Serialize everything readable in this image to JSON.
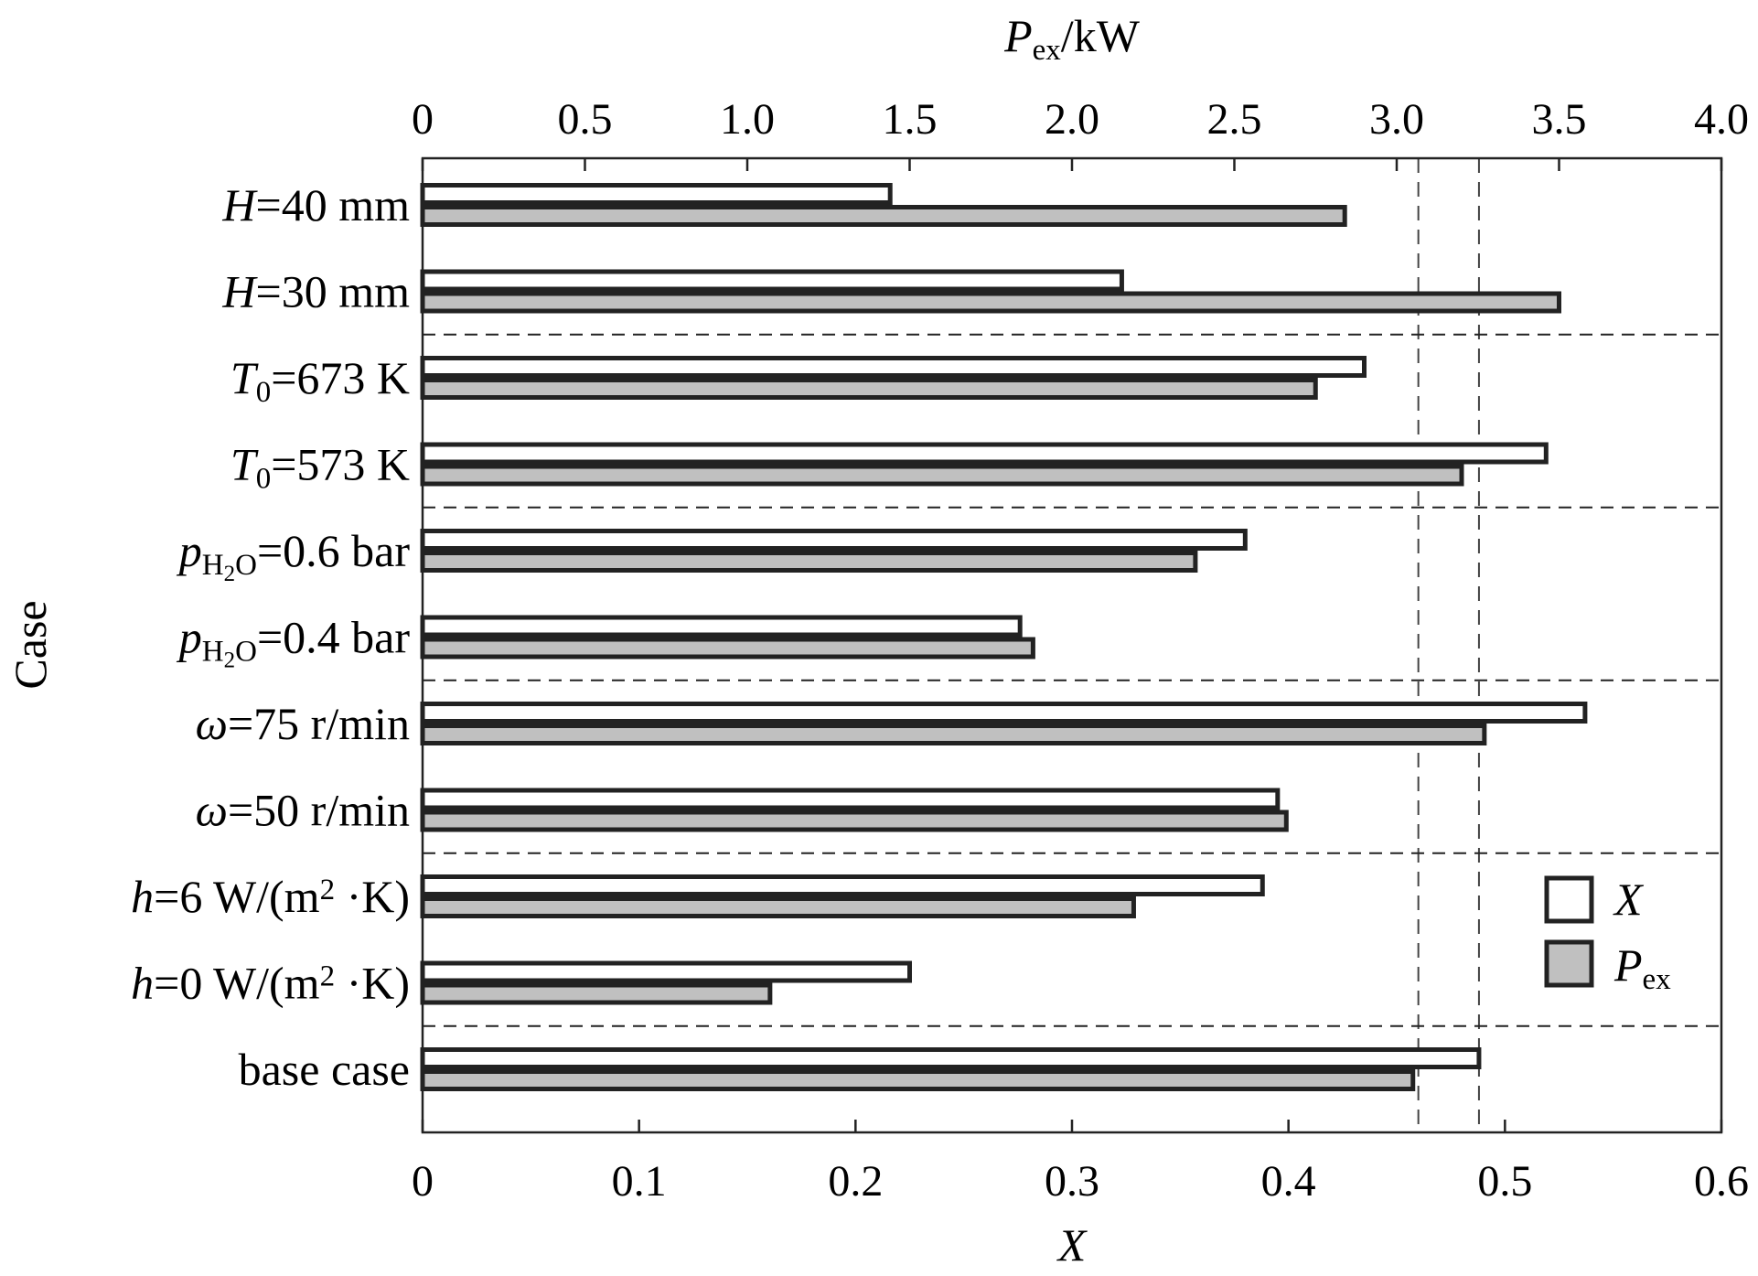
{
  "chart_data": {
    "type": "bar",
    "orientation": "horizontal",
    "title": "",
    "xlabel": "X",
    "x2label": "P_ex/kW",
    "ylabel": "Case",
    "xlim": [
      0,
      0.6
    ],
    "x2lim": [
      0,
      4.0
    ],
    "xticks": [
      "0",
      "0.1",
      "0.2",
      "0.3",
      "0.4",
      "0.5",
      "0.6"
    ],
    "x2ticks": [
      "0",
      "0.5",
      "1.0",
      "1.5",
      "2.0",
      "2.5",
      "3.0",
      "3.5",
      "4.0"
    ],
    "categories": [
      {
        "parts": [
          [
            "H",
            "i"
          ],
          [
            "=40 mm",
            ""
          ]
        ]
      },
      {
        "parts": [
          [
            "H",
            "i"
          ],
          [
            "=30 mm",
            ""
          ]
        ]
      },
      {
        "parts": [
          [
            "T",
            "i"
          ],
          [
            "0",
            "sub"
          ],
          [
            "=673 K",
            ""
          ]
        ]
      },
      {
        "parts": [
          [
            "T",
            "i"
          ],
          [
            "0",
            "sub"
          ],
          [
            "=573 K",
            ""
          ]
        ]
      },
      {
        "parts": [
          [
            "p",
            "i"
          ],
          [
            "H",
            "sub"
          ],
          [
            "2",
            "subsub"
          ],
          [
            "O",
            "sub"
          ],
          [
            "=0.6 bar",
            ""
          ]
        ]
      },
      {
        "parts": [
          [
            "p",
            "i"
          ],
          [
            "H",
            "sub"
          ],
          [
            "2",
            "subsub"
          ],
          [
            "O",
            "sub"
          ],
          [
            "=0.4 bar",
            ""
          ]
        ]
      },
      {
        "parts": [
          [
            "ω",
            "i"
          ],
          [
            "=75 r/min",
            ""
          ]
        ]
      },
      {
        "parts": [
          [
            "ω",
            "i"
          ],
          [
            "=50 r/min",
            ""
          ]
        ]
      },
      {
        "parts": [
          [
            "h",
            "i"
          ],
          [
            "=6 W/(m",
            ""
          ],
          [
            "2",
            "sup"
          ],
          [
            " ·K)",
            ""
          ]
        ]
      },
      {
        "parts": [
          [
            "h",
            "i"
          ],
          [
            "=0 W/(m",
            ""
          ],
          [
            "2",
            "sup"
          ],
          [
            " ·K)",
            ""
          ]
        ]
      },
      {
        "parts": [
          [
            "base case",
            ""
          ]
        ]
      }
    ],
    "series": [
      {
        "name": "X",
        "axis": "bottom",
        "fill": "#ffffff",
        "values": [
          0.216,
          0.323,
          0.435,
          0.519,
          0.38,
          0.276,
          0.537,
          0.395,
          0.388,
          0.225,
          0.488
        ]
      },
      {
        "name": "P_ex",
        "axis": "top",
        "fill": "#c0c0c0",
        "values": [
          2.84,
          3.5,
          2.75,
          3.2,
          2.38,
          1.88,
          3.27,
          2.66,
          2.19,
          1.07,
          3.05
        ]
      }
    ],
    "group_separators_after": [
      1,
      3,
      5,
      7,
      9
    ],
    "reference_lines_x": [
      0.46,
      0.488
    ],
    "legend": {
      "position": "right",
      "items": [
        "X",
        "P_ex"
      ]
    },
    "grid": false
  }
}
